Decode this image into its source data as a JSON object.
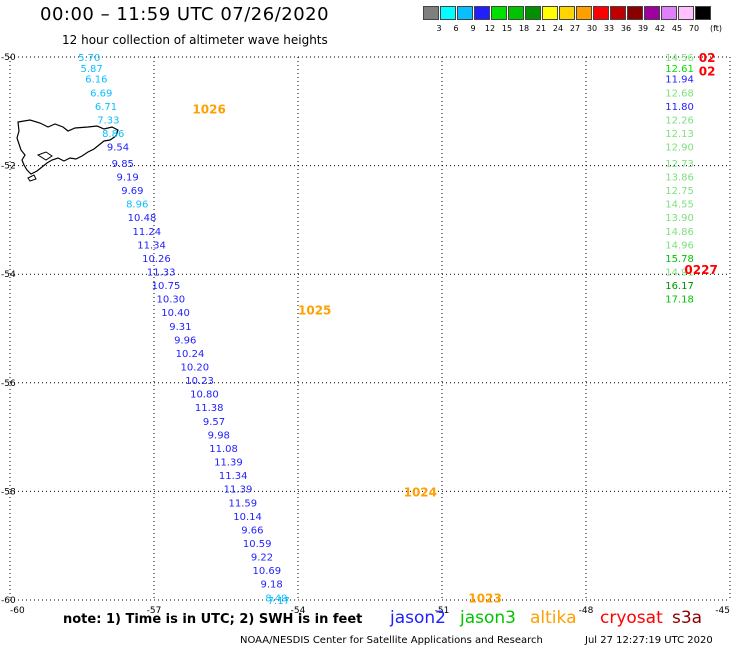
{
  "header": {
    "title": "00:00 – 11:59 UTC 07/26/2020",
    "subtitle": "12 hour collection of altimeter wave heights"
  },
  "legend": {
    "unit": "(ft)",
    "bins": [
      {
        "label": "3",
        "color": "#7f7f7f"
      },
      {
        "label": "6",
        "color": "#00ffff"
      },
      {
        "label": "9",
        "color": "#0abfff"
      },
      {
        "label": "12",
        "color": "#1f1fff"
      },
      {
        "label": "15",
        "color": "#00e000"
      },
      {
        "label": "18",
        "color": "#00c400"
      },
      {
        "label": "21",
        "color": "#009000"
      },
      {
        "label": "24",
        "color": "#ffff00"
      },
      {
        "label": "27",
        "color": "#ffd400"
      },
      {
        "label": "30",
        "color": "#ffa000"
      },
      {
        "label": "33",
        "color": "#ff0000"
      },
      {
        "label": "36",
        "color": "#c00000"
      },
      {
        "label": "39",
        "color": "#8a0000"
      },
      {
        "label": "42",
        "color": "#a000a0"
      },
      {
        "label": "45",
        "color": "#e080ff"
      },
      {
        "label": "70",
        "color": "#ffc0ff"
      },
      {
        "label": "",
        "color": "#000000"
      }
    ]
  },
  "map": {
    "xaxis_ticks": [
      "-60",
      "-57",
      "-54",
      "-51",
      "-48",
      "-45"
    ],
    "yaxis_ticks": [
      "-50",
      "-52",
      "-54",
      "-56",
      "-58",
      "-60"
    ],
    "grid": "dotted",
    "projection_note": "lat -50 to -60, lon -60 to -45"
  },
  "chart_data": {
    "type": "scatter",
    "title": "12 hour collection of altimeter wave heights",
    "xlabel": "",
    "ylabel": "",
    "xlim": [
      -60,
      -45
    ],
    "ylim": [
      -60,
      -50
    ],
    "track_labels": [
      {
        "text": "1026",
        "lon": -56.2,
        "lat": -50.95,
        "color": "#ffa000"
      },
      {
        "text": "1025",
        "lon": -54.0,
        "lat": -54.65,
        "color": "#ffa000"
      },
      {
        "text": "1024",
        "lon": -51.8,
        "lat": -58.0,
        "color": "#ffa000"
      },
      {
        "text": "1023",
        "lon": -50.45,
        "lat": -59.95,
        "color": "#ffa000"
      },
      {
        "text": "0227",
        "lon": -45.95,
        "lat": -53.9,
        "color": "#ff0000"
      },
      {
        "text": "02",
        "lon": -45.65,
        "lat": -50.0,
        "color": "#ff0000"
      },
      {
        "text": "02",
        "lon": -45.65,
        "lat": -50.25,
        "color": "#ff0000"
      }
    ],
    "series": [
      {
        "name": "jason2",
        "color": "#1f1fff",
        "points": [
          {
            "lon": -58.35,
            "lat": -50.0,
            "value": 5.7,
            "color": "#0abfff"
          },
          {
            "lon": -58.3,
            "lat": -50.2,
            "value": 5.87,
            "color": "#0abfff"
          },
          {
            "lon": -58.2,
            "lat": -50.4,
            "value": 6.16,
            "color": "#0abfff"
          },
          {
            "lon": -58.1,
            "lat": -50.65,
            "value": 6.69,
            "color": "#0abfff"
          },
          {
            "lon": -58.0,
            "lat": -50.9,
            "value": 6.71,
            "color": "#0abfff"
          },
          {
            "lon": -57.95,
            "lat": -51.15,
            "value": 7.33,
            "color": "#0abfff"
          },
          {
            "lon": -57.85,
            "lat": -51.4,
            "value": 8.86,
            "color": "#0abfff"
          },
          {
            "lon": -57.75,
            "lat": -51.65,
            "value": 9.54,
            "color": "#1f1fff"
          },
          {
            "lon": -57.65,
            "lat": -51.95,
            "value": 9.85,
            "color": "#1f1fff"
          },
          {
            "lon": -57.55,
            "lat": -52.2,
            "value": 9.19,
            "color": "#1f1fff"
          },
          {
            "lon": -57.45,
            "lat": -52.45,
            "value": 9.69,
            "color": "#1f1fff"
          },
          {
            "lon": -57.35,
            "lat": -52.7,
            "value": 8.96,
            "color": "#0abfff"
          },
          {
            "lon": -57.25,
            "lat": -52.95,
            "value": 10.48,
            "color": "#1f1fff"
          },
          {
            "lon": -57.15,
            "lat": -53.2,
            "value": 11.24,
            "color": "#1f1fff"
          },
          {
            "lon": -57.05,
            "lat": -53.45,
            "value": 11.34,
            "color": "#1f1fff"
          },
          {
            "lon": -56.95,
            "lat": -53.7,
            "value": 10.26,
            "color": "#1f1fff"
          },
          {
            "lon": -56.85,
            "lat": -53.95,
            "value": 11.33,
            "color": "#1f1fff"
          },
          {
            "lon": -56.75,
            "lat": -54.2,
            "value": 10.75,
            "color": "#1f1fff"
          },
          {
            "lon": -56.65,
            "lat": -54.45,
            "value": 10.3,
            "color": "#1f1fff"
          },
          {
            "lon": -56.55,
            "lat": -54.7,
            "value": 10.4,
            "color": "#1f1fff"
          },
          {
            "lon": -56.45,
            "lat": -54.95,
            "value": 9.31,
            "color": "#1f1fff"
          },
          {
            "lon": -56.35,
            "lat": -55.2,
            "value": 9.96,
            "color": "#1f1fff"
          },
          {
            "lon": -56.25,
            "lat": -55.45,
            "value": 10.24,
            "color": "#1f1fff"
          },
          {
            "lon": -56.15,
            "lat": -55.7,
            "value": 10.2,
            "color": "#1f1fff"
          },
          {
            "lon": -56.05,
            "lat": -55.95,
            "value": 10.23,
            "color": "#1f1fff"
          },
          {
            "lon": -55.95,
            "lat": -56.2,
            "value": 10.8,
            "color": "#1f1fff"
          },
          {
            "lon": -55.85,
            "lat": -56.45,
            "value": 11.38,
            "color": "#1f1fff"
          },
          {
            "lon": -55.75,
            "lat": -56.7,
            "value": 9.57,
            "color": "#1f1fff"
          },
          {
            "lon": -55.65,
            "lat": -56.95,
            "value": 9.98,
            "color": "#1f1fff"
          },
          {
            "lon": -55.55,
            "lat": -57.2,
            "value": 11.08,
            "color": "#1f1fff"
          },
          {
            "lon": -55.45,
            "lat": -57.45,
            "value": 11.39,
            "color": "#1f1fff"
          },
          {
            "lon": -55.35,
            "lat": -57.7,
            "value": 11.34,
            "color": "#1f1fff"
          },
          {
            "lon": -55.25,
            "lat": -57.95,
            "value": 11.39,
            "color": "#1f1fff"
          },
          {
            "lon": -55.15,
            "lat": -58.2,
            "value": 11.59,
            "color": "#1f1fff"
          },
          {
            "lon": -55.05,
            "lat": -58.45,
            "value": 10.14,
            "color": "#1f1fff"
          },
          {
            "lon": -54.95,
            "lat": -58.7,
            "value": 9.66,
            "color": "#1f1fff"
          },
          {
            "lon": -54.85,
            "lat": -58.95,
            "value": 10.59,
            "color": "#1f1fff"
          },
          {
            "lon": -54.75,
            "lat": -59.2,
            "value": 9.22,
            "color": "#1f1fff"
          },
          {
            "lon": -54.65,
            "lat": -59.45,
            "value": 10.69,
            "color": "#1f1fff"
          },
          {
            "lon": -54.55,
            "lat": -59.7,
            "value": 9.18,
            "color": "#1f1fff"
          },
          {
            "lon": -54.45,
            "lat": -59.95,
            "value": 8.49,
            "color": "#0abfff"
          },
          {
            "lon": -54.4,
            "lat": -60.0,
            "value": 7.17,
            "color": "#0abfff"
          }
        ]
      },
      {
        "name": "jason3",
        "color": "#00c400",
        "points": [
          {
            "lon": -46.05,
            "lat": -50.0,
            "value": 14.56,
            "color": "#7fe07f"
          },
          {
            "lon": -46.05,
            "lat": -50.2,
            "value": 12.61,
            "color": "#00e000"
          },
          {
            "lon": -46.05,
            "lat": -50.4,
            "value": 11.94,
            "color": "#1f1fff"
          },
          {
            "lon": -46.05,
            "lat": -50.65,
            "value": 12.68,
            "color": "#7fe07f"
          },
          {
            "lon": -46.05,
            "lat": -50.9,
            "value": 11.8,
            "color": "#1f1fff"
          },
          {
            "lon": -46.05,
            "lat": -51.15,
            "value": 12.26,
            "color": "#7fe07f"
          },
          {
            "lon": -46.05,
            "lat": -51.4,
            "value": 12.13,
            "color": "#7fe07f"
          },
          {
            "lon": -46.05,
            "lat": -51.65,
            "value": 12.9,
            "color": "#7fe07f"
          },
          {
            "lon": -46.05,
            "lat": -51.95,
            "value": 12.73,
            "color": "#7fe07f"
          },
          {
            "lon": -46.05,
            "lat": -52.2,
            "value": 13.86,
            "color": "#7fe07f"
          },
          {
            "lon": -46.05,
            "lat": -52.45,
            "value": 12.75,
            "color": "#7fe07f"
          },
          {
            "lon": -46.05,
            "lat": -52.7,
            "value": 14.55,
            "color": "#7fe07f"
          },
          {
            "lon": -46.05,
            "lat": -52.95,
            "value": 13.9,
            "color": "#7fe07f"
          },
          {
            "lon": -46.05,
            "lat": -53.2,
            "value": 14.86,
            "color": "#7fe07f"
          },
          {
            "lon": -46.05,
            "lat": -53.45,
            "value": 14.96,
            "color": "#7fe07f"
          },
          {
            "lon": -46.05,
            "lat": -53.7,
            "value": 15.78,
            "color": "#00c400"
          },
          {
            "lon": -46.05,
            "lat": -53.95,
            "value": 14.91,
            "color": "#7fe07f"
          },
          {
            "lon": -46.05,
            "lat": -54.2,
            "value": 16.17,
            "color": "#009000"
          },
          {
            "lon": -46.05,
            "lat": -54.45,
            "value": 17.18,
            "color": "#00c400"
          }
        ]
      }
    ]
  },
  "footer": {
    "note": "note:  1) Time is in UTC;  2) SWH is in feet",
    "satellites": [
      {
        "name": "jason2",
        "color": "#1f1fff"
      },
      {
        "name": "jason3",
        "color": "#00c400"
      },
      {
        "name": "altika",
        "color": "#ffa000"
      },
      {
        "name": "cryosat",
        "color": "#ff0000"
      },
      {
        "name": "s3a",
        "color": "#8a0000"
      }
    ],
    "credit": "NOAA/NESDIS Center for Satellite Applications and Research",
    "timestamp": "Jul 27 12:27:19 UTC 2020"
  }
}
